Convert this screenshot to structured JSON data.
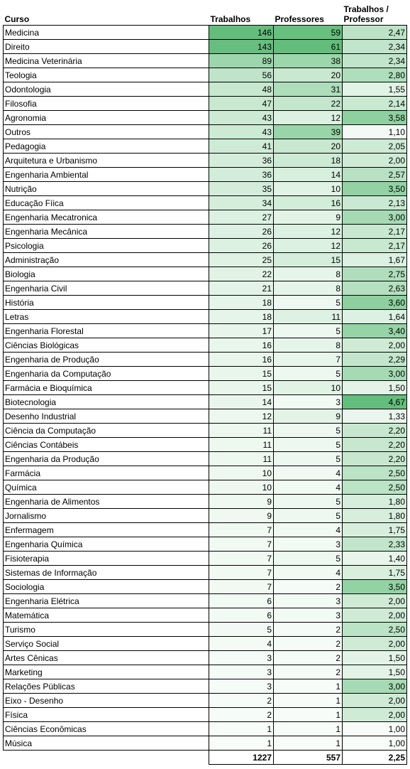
{
  "headers": {
    "curso": "Curso",
    "trabalhos": "Trabalhos",
    "professores": "Professores",
    "ratio": "Trabalhos / Professor"
  },
  "rows": [
    {
      "curso": "Medicina",
      "trabalhos": "146",
      "professores": "59",
      "ratio": "2,47"
    },
    {
      "curso": "Direito",
      "trabalhos": "143",
      "professores": "61",
      "ratio": "2,34"
    },
    {
      "curso": "Medicina Veterinária",
      "trabalhos": "89",
      "professores": "38",
      "ratio": "2,34"
    },
    {
      "curso": "Teologia",
      "trabalhos": "56",
      "professores": "20",
      "ratio": "2,80"
    },
    {
      "curso": "Odontologia",
      "trabalhos": "48",
      "professores": "31",
      "ratio": "1,55"
    },
    {
      "curso": "Filosofia",
      "trabalhos": "47",
      "professores": "22",
      "ratio": "2,14"
    },
    {
      "curso": "Agronomia",
      "trabalhos": "43",
      "professores": "12",
      "ratio": "3,58"
    },
    {
      "curso": "Outros",
      "trabalhos": "43",
      "professores": "39",
      "ratio": "1,10"
    },
    {
      "curso": "Pedagogia",
      "trabalhos": "41",
      "professores": "20",
      "ratio": "2,05"
    },
    {
      "curso": "Arquitetura e Urbanismo",
      "trabalhos": "36",
      "professores": "18",
      "ratio": "2,00"
    },
    {
      "curso": "Engenharia Ambiental",
      "trabalhos": "36",
      "professores": "14",
      "ratio": "2,57"
    },
    {
      "curso": "Nutrição",
      "trabalhos": "35",
      "professores": "10",
      "ratio": "3,50"
    },
    {
      "curso": "Educação Fíica",
      "trabalhos": "34",
      "professores": "16",
      "ratio": "2,13"
    },
    {
      "curso": "Engenharia Mecatronica",
      "trabalhos": "27",
      "professores": "9",
      "ratio": "3,00"
    },
    {
      "curso": "Engenharia Mecânica",
      "trabalhos": "26",
      "professores": "12",
      "ratio": "2,17"
    },
    {
      "curso": "Psicologia",
      "trabalhos": "26",
      "professores": "12",
      "ratio": "2,17"
    },
    {
      "curso": "Administração",
      "trabalhos": "25",
      "professores": "15",
      "ratio": "1,67"
    },
    {
      "curso": "Biologia",
      "trabalhos": "22",
      "professores": "8",
      "ratio": "2,75"
    },
    {
      "curso": "Engenharia Civil",
      "trabalhos": "21",
      "professores": "8",
      "ratio": "2,63"
    },
    {
      "curso": "História",
      "trabalhos": "18",
      "professores": "5",
      "ratio": "3,60"
    },
    {
      "curso": "Letras",
      "trabalhos": "18",
      "professores": "11",
      "ratio": "1,64"
    },
    {
      "curso": "Engenharia Florestal",
      "trabalhos": "17",
      "professores": "5",
      "ratio": "3,40"
    },
    {
      "curso": "Ciências Biológicas",
      "trabalhos": "16",
      "professores": "8",
      "ratio": "2,00"
    },
    {
      "curso": "Engenharia de Produção",
      "trabalhos": "16",
      "professores": "7",
      "ratio": "2,29"
    },
    {
      "curso": "Engenharia da Computação",
      "trabalhos": "15",
      "professores": "5",
      "ratio": "3,00"
    },
    {
      "curso": "Farmácia e Bioquímica",
      "trabalhos": "15",
      "professores": "10",
      "ratio": "1,50"
    },
    {
      "curso": "Biotecnologia",
      "trabalhos": "14",
      "professores": "3",
      "ratio": "4,67"
    },
    {
      "curso": "Desenho Industrial",
      "trabalhos": "12",
      "professores": "9",
      "ratio": "1,33"
    },
    {
      "curso": "Ciência da Computação",
      "trabalhos": "11",
      "professores": "5",
      "ratio": "2,20"
    },
    {
      "curso": "Ciências Contábeis",
      "trabalhos": "11",
      "professores": "5",
      "ratio": "2,20"
    },
    {
      "curso": "Engenharia da Produção",
      "trabalhos": "11",
      "professores": "5",
      "ratio": "2,20"
    },
    {
      "curso": "Farmácia",
      "trabalhos": "10",
      "professores": "4",
      "ratio": "2,50"
    },
    {
      "curso": "Química",
      "trabalhos": "10",
      "professores": "4",
      "ratio": "2,50"
    },
    {
      "curso": "Engenharia de Alimentos",
      "trabalhos": "9",
      "professores": "5",
      "ratio": "1,80"
    },
    {
      "curso": "Jornalismo",
      "trabalhos": "9",
      "professores": "5",
      "ratio": "1,80"
    },
    {
      "curso": "Enfermagem",
      "trabalhos": "7",
      "professores": "4",
      "ratio": "1,75"
    },
    {
      "curso": "Engenharia Química",
      "trabalhos": "7",
      "professores": "3",
      "ratio": "2,33"
    },
    {
      "curso": "Fisioterapia",
      "trabalhos": "7",
      "professores": "5",
      "ratio": "1,40"
    },
    {
      "curso": "Sistemas de Informação",
      "trabalhos": "7",
      "professores": "4",
      "ratio": "1,75"
    },
    {
      "curso": "Sociologia",
      "trabalhos": "7",
      "professores": "2",
      "ratio": "3,50"
    },
    {
      "curso": "Engenharia Elétrica",
      "trabalhos": "6",
      "professores": "3",
      "ratio": "2,00"
    },
    {
      "curso": "Matemática",
      "trabalhos": "6",
      "professores": "3",
      "ratio": "2,00"
    },
    {
      "curso": "Turismo",
      "trabalhos": "5",
      "professores": "2",
      "ratio": "2,50"
    },
    {
      "curso": "Serviço Social",
      "trabalhos": "4",
      "professores": "2",
      "ratio": "2,00"
    },
    {
      "curso": "Artes Cênicas",
      "trabalhos": "3",
      "professores": "2",
      "ratio": "1,50"
    },
    {
      "curso": "Marketing",
      "trabalhos": "3",
      "professores": "2",
      "ratio": "1,50"
    },
    {
      "curso": "Relações Públicas",
      "trabalhos": "3",
      "professores": "1",
      "ratio": "3,00"
    },
    {
      "curso": "Eixo - Desenho",
      "trabalhos": "2",
      "professores": "1",
      "ratio": "2,00"
    },
    {
      "curso": "Física",
      "trabalhos": "2",
      "professores": "1",
      "ratio": "2,00"
    },
    {
      "curso": "Ciências Econômicas",
      "trabalhos": "1",
      "professores": "1",
      "ratio": "1,00"
    },
    {
      "curso": "Música",
      "trabalhos": "1",
      "professores": "1",
      "ratio": "1,00"
    }
  ],
  "totals": {
    "trabalhos": "1227",
    "professores": "557",
    "ratio": "2,25"
  },
  "colors": {
    "scale_low": "#f7fcf8",
    "scale_high": "#63be7b"
  }
}
